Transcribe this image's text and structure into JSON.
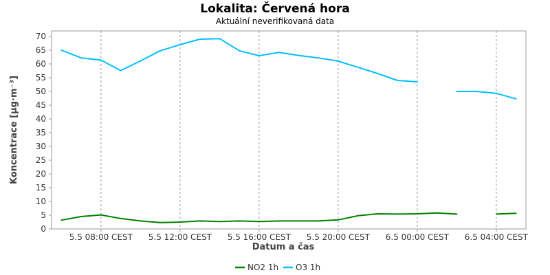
{
  "chart_data": {
    "type": "line",
    "title": "Lokalita: Červená hora",
    "subtitle": "Aktuální neverifikovaná data",
    "xlabel": "Datum a čas",
    "ylabel": "Koncentrace [µg·m⁻³]",
    "ylim": [
      0,
      72
    ],
    "yticks": [
      0,
      5,
      10,
      15,
      20,
      25,
      30,
      35,
      40,
      45,
      50,
      55,
      60,
      65,
      70
    ],
    "x_hours": [
      6,
      7,
      8,
      9,
      10,
      11,
      12,
      13,
      14,
      15,
      16,
      17,
      18,
      19,
      20,
      21,
      22,
      23,
      24,
      25,
      26,
      27,
      28,
      29
    ],
    "xlim_hours": [
      5.5,
      29.5
    ],
    "xticks": [
      {
        "hour": 8,
        "label": "5.5 08:00 CEST"
      },
      {
        "hour": 12,
        "label": "5.5 12:00 CEST"
      },
      {
        "hour": 16,
        "label": "5.5 16:00 CEST"
      },
      {
        "hour": 20,
        "label": "5.5 20:00 CEST"
      },
      {
        "hour": 24,
        "label": "6.5 00:00 CEST"
      },
      {
        "hour": 28,
        "label": "6.5 04:00 CEST"
      }
    ],
    "grid": "vertical dashed at major ticks",
    "legend_position": "bottom-center",
    "series": [
      {
        "name": "NO2 1h",
        "color": "#008000",
        "values": [
          3.2,
          4.5,
          5.1,
          3.8,
          2.9,
          2.3,
          2.5,
          2.9,
          2.7,
          2.9,
          2.7,
          2.9,
          2.9,
          2.9,
          3.3,
          4.8,
          5.5,
          5.4,
          5.5,
          5.8,
          5.4,
          null,
          5.4,
          5.7
        ]
      },
      {
        "name": "O3 1h",
        "color": "#00bfff",
        "values": [
          65.0,
          62.2,
          61.4,
          57.6,
          61.1,
          64.8,
          67.0,
          69.0,
          69.2,
          64.8,
          63.0,
          64.2,
          63.1,
          62.2,
          61.0,
          58.8,
          56.5,
          54.0,
          53.5,
          null,
          50.0,
          50.0,
          49.3,
          47.3
        ]
      }
    ]
  }
}
